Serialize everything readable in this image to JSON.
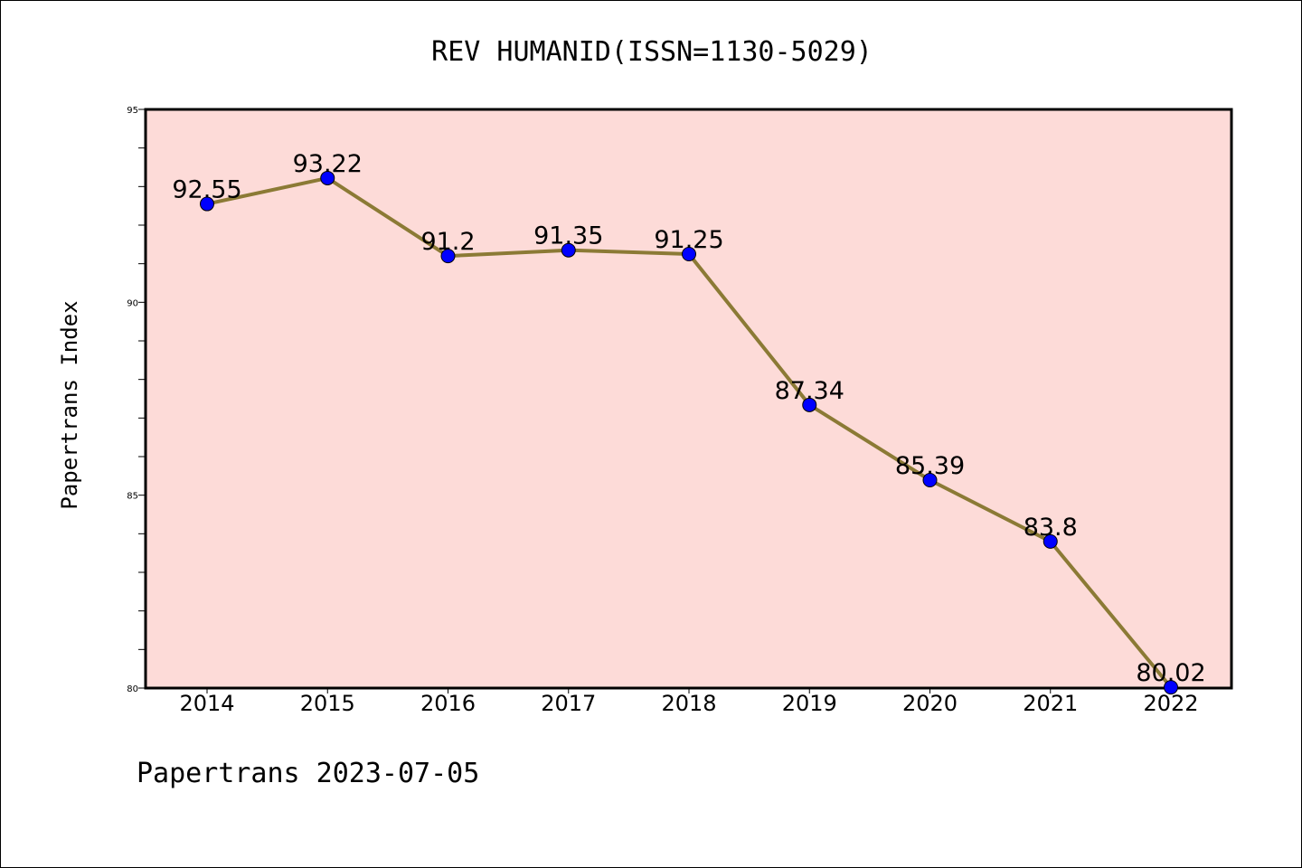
{
  "chart_data": {
    "type": "line",
    "title": "REV HUMANID(ISSN=1130-5029)",
    "xlabel": "",
    "ylabel": "Papertrans Index",
    "footer": "Papertrans 2023-07-05",
    "x": [
      "2014",
      "2015",
      "2016",
      "2017",
      "2018",
      "2019",
      "2020",
      "2021",
      "2022"
    ],
    "series": [
      {
        "values": [
          92.55,
          93.22,
          91.2,
          91.35,
          91.25,
          87.34,
          85.39,
          83.8,
          80.02
        ],
        "labels": [
          "92.55",
          "93.22",
          "91.2",
          "91.35",
          "91.25",
          "87.34",
          "85.39",
          "83.8",
          "80.02"
        ]
      }
    ],
    "ylim": [
      80,
      95
    ],
    "yticks": [
      80,
      85,
      90,
      95
    ],
    "ytick_labels": [
      "80",
      "85",
      "90",
      "95"
    ],
    "grid": false,
    "colors": {
      "plot_background": "#fddbd8",
      "line": "#8b7a35",
      "marker": "#0000ff"
    }
  }
}
